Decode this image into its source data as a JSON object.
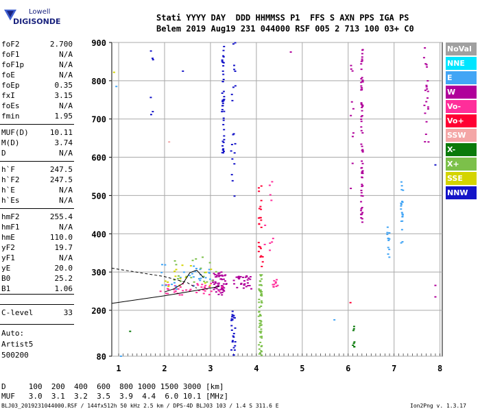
{
  "logo": {
    "line1": "Lowell",
    "line2": "DIGISONDE"
  },
  "header": {
    "row1": "Stati YYYY DAY  DDD HHMMSS P1  FFS S AXN PPS IGA PS",
    "row2": "Belem 2019 Aug19 231 044000 RSF 005 2 713 100 03+ C0"
  },
  "params": [
    {
      "k": "foF2",
      "v": "2.700"
    },
    {
      "k": "foF1",
      "v": "N/A"
    },
    {
      "k": "foF1p",
      "v": "N/A"
    },
    {
      "k": "foE",
      "v": "N/A"
    },
    {
      "k": "foEp",
      "v": "0.35"
    },
    {
      "k": "fxI",
      "v": "3.15"
    },
    {
      "k": "foEs",
      "v": "N/A"
    },
    {
      "k": "fmin",
      "v": "1.95"
    },
    {
      "k": "MUF(D)",
      "v": "10.11"
    },
    {
      "k": "M(D)",
      "v": "3.74"
    },
    {
      "k": "D",
      "v": "N/A"
    },
    {
      "k": "h`F",
      "v": "247.5"
    },
    {
      "k": "h`F2",
      "v": "247.5"
    },
    {
      "k": "h`E",
      "v": "N/A"
    },
    {
      "k": "h`Es",
      "v": "N/A"
    },
    {
      "k": "hmF2",
      "v": "255.4"
    },
    {
      "k": "hmF1",
      "v": "N/A"
    },
    {
      "k": "hmE",
      "v": "110.0"
    },
    {
      "k": "yF2",
      "v": "19.7"
    },
    {
      "k": "yF1",
      "v": "N/A"
    },
    {
      "k": "yE",
      "v": "20.0"
    },
    {
      "k": "B0",
      "v": "25.2"
    },
    {
      "k": "B1",
      "v": "1.06"
    },
    {
      "k": "C-level",
      "v": "33"
    }
  ],
  "auto": [
    "Auto:",
    "Artist5",
    "500200"
  ],
  "muf_table": {
    "row1": "D     100  200  400  600  800 1000 1500 3000 [km]",
    "row2": "MUF   3.0  3.1  3.2  3.5  3.9  4.4  6.0 10.1 [MHz]"
  },
  "footer_left": "BLJ03_2019231044000.RSF / 144fx512h 50 kHz 2.5 km / DPS-4D BLJ03 103 / 1.4 S 311.6 E",
  "footer_right": "Ion2Png v. 1.3.17",
  "legend": [
    {
      "label": "NoVal",
      "color": "#a0a0a0"
    },
    {
      "label": "NNE",
      "color": "#00e5ff"
    },
    {
      "label": "E",
      "color": "#42a5f5"
    },
    {
      "label": "W",
      "color": "#b0009a"
    },
    {
      "label": "Vo-",
      "color": "#ff2e9a"
    },
    {
      "label": "Vo+",
      "color": "#ff0033"
    },
    {
      "label": "SSW",
      "color": "#f4a6a6"
    },
    {
      "label": "X-",
      "color": "#0a7a0a"
    },
    {
      "label": "X+",
      "color": "#7cc04a"
    },
    {
      "label": "SSE",
      "color": "#d4d400"
    },
    {
      "label": "NNW",
      "color": "#1414c8"
    }
  ],
  "chart_data": {
    "type": "scatter",
    "xlim": [
      0.85,
      8.05
    ],
    "ylim": [
      80,
      900
    ],
    "x_ticks": [
      "1",
      "2",
      "3",
      "4",
      "5",
      "6",
      "7",
      "8"
    ],
    "y_ticks": [
      "80",
      "200",
      "300",
      "400",
      "500",
      "600",
      "700",
      "800",
      "900"
    ],
    "grid": true,
    "profile_curves": [
      {
        "name": "profile-solid-lower",
        "style": "solid",
        "points": [
          [
            0.85,
            218
          ],
          [
            2.0,
            238
          ],
          [
            2.7,
            252
          ],
          [
            3.2,
            262
          ]
        ]
      },
      {
        "name": "profile-dashed",
        "style": "dashed",
        "points": [
          [
            0.85,
            310
          ],
          [
            2.0,
            288
          ],
          [
            2.5,
            272
          ],
          [
            2.7,
            258
          ]
        ]
      },
      {
        "name": "profile-solid-upper",
        "style": "solid",
        "points": [
          [
            2.0,
            248
          ],
          [
            2.2,
            256
          ],
          [
            2.4,
            270
          ],
          [
            2.55,
            298
          ],
          [
            2.7,
            305
          ],
          [
            2.85,
            285
          ]
        ]
      }
    ],
    "echo_clusters": [
      {
        "source": "W",
        "x": [
          3.05,
          3.35
        ],
        "y": [
          240,
          300
        ],
        "n": 55
      },
      {
        "source": "Vo-",
        "x": [
          1.9,
          3.3
        ],
        "y": [
          240,
          270
        ],
        "n": 45
      },
      {
        "source": "W",
        "x": [
          3.5,
          3.9
        ],
        "y": [
          255,
          290
        ],
        "n": 30
      },
      {
        "source": "Vo-",
        "x": [
          4.35,
          4.5
        ],
        "y": [
          260,
          282
        ],
        "n": 10
      },
      {
        "source": "E",
        "x": [
          1.9,
          3.0
        ],
        "y": [
          255,
          320
        ],
        "n": 30
      },
      {
        "source": "X+",
        "x": [
          2.2,
          3.2
        ],
        "y": [
          270,
          340
        ],
        "n": 20
      },
      {
        "source": "SSE",
        "x": [
          2.0,
          3.1
        ],
        "y": [
          260,
          320
        ],
        "n": 15
      },
      {
        "source": "NNW",
        "x": [
          3.25,
          3.3
        ],
        "y": [
          610,
          900
        ],
        "n": 45
      },
      {
        "source": "NNW",
        "x": [
          3.45,
          3.55
        ],
        "y": [
          80,
          200
        ],
        "n": 25
      },
      {
        "source": "NNW",
        "x": [
          3.45,
          3.55
        ],
        "y": [
          490,
          900
        ],
        "n": 20
      },
      {
        "source": "X+",
        "x": [
          4.05,
          4.12
        ],
        "y": [
          80,
          300
        ],
        "n": 60
      },
      {
        "source": "Vo+",
        "x": [
          4.05,
          4.15
        ],
        "y": [
          300,
          540
        ],
        "n": 25
      },
      {
        "source": "Vo-",
        "x": [
          4.18,
          4.4
        ],
        "y": [
          350,
          560
        ],
        "n": 10
      },
      {
        "source": "W",
        "x": [
          6.28,
          6.32
        ],
        "y": [
          430,
          900
        ],
        "n": 70
      },
      {
        "source": "E",
        "x": [
          6.85,
          6.9
        ],
        "y": [
          330,
          420
        ],
        "n": 12
      },
      {
        "source": "E",
        "x": [
          7.15,
          7.2
        ],
        "y": [
          370,
          540
        ],
        "n": 20
      },
      {
        "source": "W",
        "x": [
          7.65,
          7.75
        ],
        "y": [
          640,
          900
        ],
        "n": 20
      },
      {
        "source": "W",
        "x": [
          6.05,
          6.12
        ],
        "y": [
          480,
          900
        ],
        "n": 10
      },
      {
        "source": "NNW",
        "x": [
          1.7,
          1.8
        ],
        "y": [
          600,
          900
        ],
        "n": 5
      },
      {
        "source": "X-",
        "x": [
          6.1,
          6.15
        ],
        "y": [
          100,
          160
        ],
        "n": 8
      }
    ],
    "echo_points": [
      {
        "source": "SSE",
        "x": 0.9,
        "y": 822
      },
      {
        "source": "E",
        "x": 0.95,
        "y": 785
      },
      {
        "source": "X-",
        "x": 1.25,
        "y": 145
      },
      {
        "source": "NNW",
        "x": 1.75,
        "y": 855
      },
      {
        "source": "E",
        "x": 1.05,
        "y": 80
      },
      {
        "source": "SSW",
        "x": 2.1,
        "y": 640
      },
      {
        "source": "NNW",
        "x": 2.4,
        "y": 825
      },
      {
        "source": "W",
        "x": 4.75,
        "y": 875
      },
      {
        "source": "W",
        "x": 7.75,
        "y": 640
      },
      {
        "source": "NNW",
        "x": 7.9,
        "y": 580
      },
      {
        "source": "E",
        "x": 5.7,
        "y": 175
      },
      {
        "source": "Vo+",
        "x": 6.05,
        "y": 220
      },
      {
        "source": "W",
        "x": 7.9,
        "y": 265
      },
      {
        "source": "W",
        "x": 7.9,
        "y": 235
      }
    ]
  }
}
